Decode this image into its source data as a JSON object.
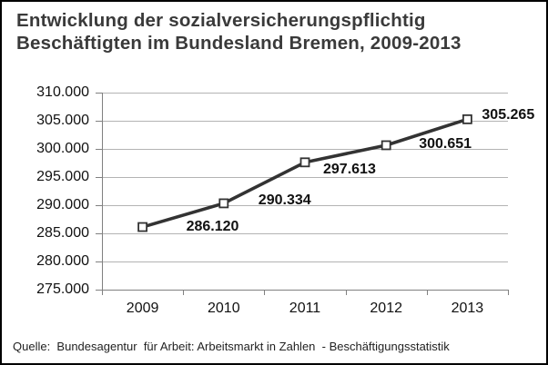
{
  "title": "Entwicklung der sozialversicherungspflichtig Beschäftigten im Bundesland Bremen, 2009-2013",
  "source": "Quelle:  Bundesagentur  für Arbeit: Arbeitsmarkt in Zahlen  - Beschäftigungsstatistik",
  "colors": {
    "line": "#333333",
    "marker_fill": "#ffffff",
    "marker_border": "#333333",
    "gridline": "#b3b3b3",
    "axis": "#808080",
    "title_text": "#3a3a3a",
    "label_text": "#111111"
  },
  "chart_data": {
    "type": "line",
    "title": "Entwicklung der sozialversicherungspflichtig Beschäftigten im Bundesland Bremen, 2009-2013",
    "categories": [
      "2009",
      "2010",
      "2011",
      "2012",
      "2013"
    ],
    "values": [
      286120,
      290334,
      297613,
      300651,
      305265
    ],
    "data_labels": [
      "286.120",
      "290.334",
      "297.613",
      "300.651",
      "305.265"
    ],
    "y_tick_labels": [
      "310.000",
      "305.000",
      "300.000",
      "295.000",
      "290.000",
      "285.000",
      "280.000",
      "275.000"
    ],
    "y_tick_values": [
      310000,
      305000,
      300000,
      295000,
      290000,
      285000,
      280000,
      275000
    ],
    "ylim": [
      275000,
      310000
    ],
    "y_step": 5000,
    "xlabel": "",
    "ylabel": "",
    "grid": true,
    "legend_position": "none",
    "marker": "open-square",
    "source": "Quelle: Bundesagentur für Arbeit: Arbeitsmarkt in Zahlen - Beschäftigungsstatistik"
  }
}
